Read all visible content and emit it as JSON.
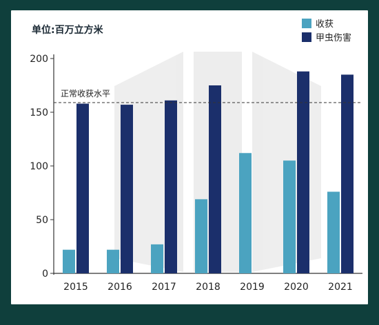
{
  "chart_data": {
    "type": "bar",
    "title": "单位:百万立方米",
    "categories": [
      "2015",
      "2016",
      "2017",
      "2018",
      "2019",
      "2020",
      "2021"
    ],
    "series": [
      {
        "name": "收获",
        "color": "#4ba3c0",
        "values": [
          22,
          22,
          27,
          69,
          112,
          105,
          76
        ]
      },
      {
        "name": "甲虫伤害",
        "color": "#1b2f6b",
        "values": [
          158,
          157,
          161,
          175,
          null,
          188,
          185
        ]
      }
    ],
    "ylim": [
      0,
      200
    ],
    "yticks": [
      0,
      50,
      100,
      150,
      200
    ],
    "reference_line": {
      "label": "正常收获水平",
      "value": 159
    },
    "legend_position": "top-right",
    "grid": false
  }
}
